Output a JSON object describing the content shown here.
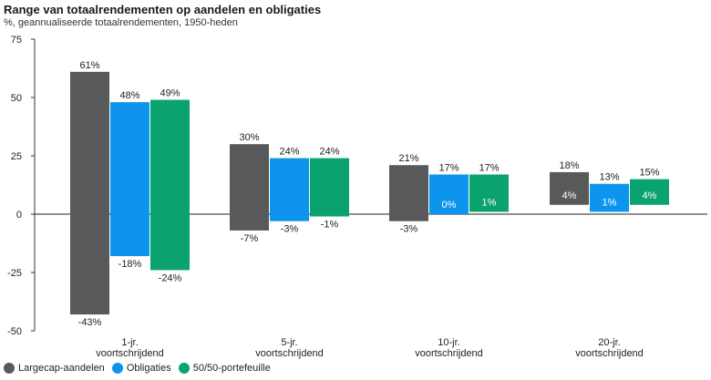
{
  "title": "Range van totaalrendementen op aandelen en obligaties",
  "subtitle": "%, geannualiseerde totaalrendementen, 1950-heden",
  "colors": {
    "largecap": "#58595b",
    "obligaties": "#0d95ed",
    "portefeuille": "#0aa36f"
  },
  "chart_data": {
    "type": "bar",
    "subtype": "floating-range",
    "title": "Range van totaalrendementen op aandelen en obligaties",
    "subtitle": "%, geannualiseerde totaalrendementen, 1950-heden",
    "ylim": [
      -50,
      75
    ],
    "yticks": [
      "75",
      "50",
      "25",
      "0",
      "-25",
      "-50"
    ],
    "ytick_values": [
      75,
      50,
      25,
      0,
      -25,
      -50
    ],
    "categories": [
      [
        "1-jr.",
        "voortschrijdend"
      ],
      [
        "5-jr.",
        "voortschrijdend"
      ],
      [
        "10-jr.",
        "voortschrijdend"
      ],
      [
        "20-jr.",
        "voortschrijdend"
      ]
    ],
    "series": [
      {
        "name": "Largecap-aandelen",
        "color": "#58595b",
        "high": [
          61,
          30,
          21,
          18
        ],
        "low": [
          -43,
          -7,
          -3,
          4
        ],
        "high_labels": [
          "61%",
          "30%",
          "21%",
          "18%"
        ],
        "low_labels": [
          "-43%",
          "-7%",
          "-3%",
          "4%"
        ]
      },
      {
        "name": "Obligaties",
        "color": "#0d95ed",
        "high": [
          48,
          24,
          17,
          13
        ],
        "low": [
          -18,
          -3,
          0,
          1
        ],
        "high_labels": [
          "48%",
          "24%",
          "17%",
          "13%"
        ],
        "low_labels": [
          "-18%",
          "-3%",
          "0%",
          "1%"
        ]
      },
      {
        "name": "50/50-portefeuille",
        "color": "#0aa36f",
        "high": [
          49,
          24,
          17,
          15
        ],
        "low": [
          -24,
          -1,
          1,
          4
        ],
        "high_labels": [
          "49%",
          "24%",
          "17%",
          "15%"
        ],
        "low_labels": [
          "-24%",
          "-1%",
          "1%",
          "4%"
        ]
      }
    ],
    "legend": [
      "Largecap-aandelen",
      "Obligaties",
      "50/50-portefeuille"
    ]
  }
}
